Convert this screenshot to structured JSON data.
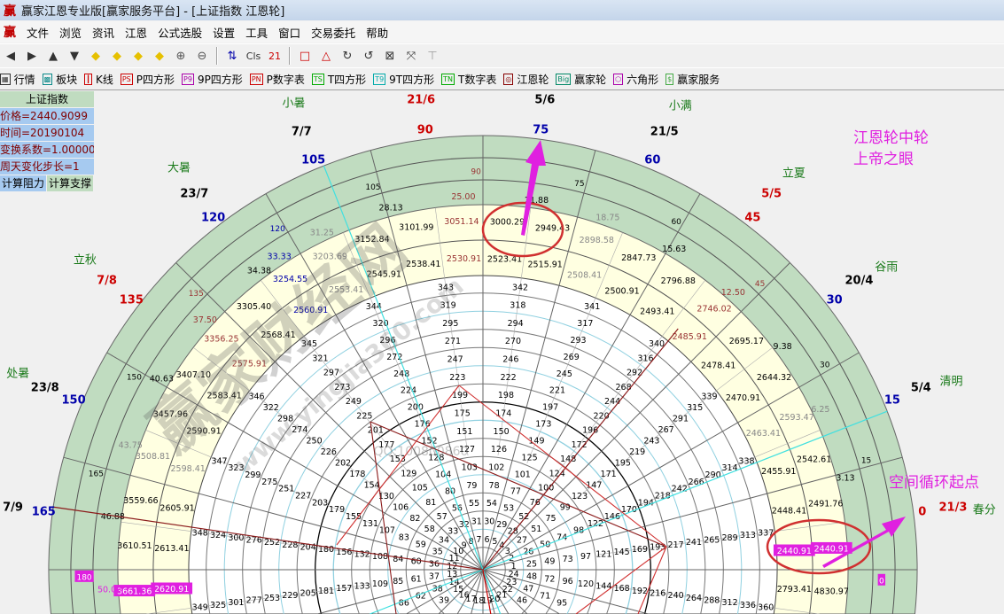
{
  "window": {
    "app_icon": "赢",
    "title": "赢家江恩专业版[赢家服务平台] - [上证指数 江恩轮]"
  },
  "menu": [
    "文件",
    "浏览",
    "资讯",
    "江恩",
    "公式选股",
    "设置",
    "工具",
    "窗口",
    "交易委托",
    "帮助"
  ],
  "toolbar1": [
    {
      "icon": "arrow-left-icon",
      "glyph": "◀"
    },
    {
      "icon": "arrow-right-icon",
      "glyph": "▶"
    },
    {
      "icon": "arrow-up-icon",
      "glyph": "▲"
    },
    {
      "icon": "arrow-down-icon",
      "glyph": "▼"
    },
    {
      "icon": "diamond-left-icon",
      "glyph": "◆"
    },
    {
      "icon": "diamond-right-icon",
      "glyph": "◆"
    },
    {
      "icon": "diamond-up-icon",
      "glyph": "◆"
    },
    {
      "icon": "diamond-down-icon",
      "glyph": "◆"
    },
    {
      "icon": "zoom-in-icon",
      "glyph": "⊕"
    },
    {
      "icon": "zoom-out-icon",
      "glyph": "⊖"
    },
    {
      "icon": "sort-icon",
      "glyph": "⇅"
    },
    {
      "icon": "cls-icon",
      "glyph": "Cls"
    },
    {
      "icon": "calendar-icon",
      "glyph": "21"
    },
    {
      "icon": "rectangle-icon",
      "glyph": "□"
    },
    {
      "icon": "triangle-icon",
      "glyph": "△"
    },
    {
      "icon": "rotate-cw-icon",
      "glyph": "↻"
    },
    {
      "icon": "rotate-ccw-icon",
      "glyph": "↺"
    },
    {
      "icon": "fit-icon",
      "glyph": "⊠"
    },
    {
      "icon": "shrink-icon",
      "glyph": "⤧"
    },
    {
      "icon": "pin-icon",
      "glyph": "⊤"
    }
  ],
  "toolbar2": [
    {
      "icon": "quotes-icon",
      "tag": "▦",
      "label": "行情",
      "color": "#333"
    },
    {
      "icon": "blocks-icon",
      "tag": "▩",
      "label": "板块",
      "color": "#0a8a8a"
    },
    {
      "icon": "kline-icon",
      "tag": "┃",
      "label": "K线",
      "color": "#c00"
    },
    {
      "icon": "ps-icon",
      "tag": "PS",
      "label": "P四方形",
      "color": "#c00"
    },
    {
      "icon": "p9-icon",
      "tag": "P9",
      "label": "9P四方形",
      "color": "#a0a"
    },
    {
      "icon": "pn-icon",
      "tag": "PN",
      "label": "P数字表",
      "color": "#c00"
    },
    {
      "icon": "ts-icon",
      "tag": "TS",
      "label": "T四方形",
      "color": "#0a0"
    },
    {
      "icon": "t9-icon",
      "tag": "T9",
      "label": "9T四方形",
      "color": "#0aa"
    },
    {
      "icon": "tn-icon",
      "tag": "TN",
      "label": "T数字表",
      "color": "#0a0"
    },
    {
      "icon": "gann-wheel-icon",
      "tag": "◎",
      "label": "江恩轮",
      "color": "#800"
    },
    {
      "icon": "big-wheel-icon",
      "tag": "Big",
      "label": "赢家轮",
      "color": "#086"
    },
    {
      "icon": "hexagon-icon",
      "tag": "⬡",
      "label": "六角形",
      "color": "#a0a"
    },
    {
      "icon": "dollar-icon",
      "tag": "$",
      "label": "赢家服务",
      "color": "#4a4"
    }
  ],
  "info_panel": {
    "header": "上证指数",
    "rows": [
      "价格=2440.9099",
      "时间=20190104",
      "变换系数=1.00000",
      "周天变化步长=1"
    ],
    "buttons": [
      "计算阻力",
      "计算支撑"
    ]
  },
  "wheel": {
    "colors": {
      "green": "#c0dcc0",
      "yellow": "#ffffe1",
      "red": "#cc0000",
      "blue": "#0000aa",
      "brown": "#993333",
      "magenta": "#e020e0",
      "cyan": "#40e0e0"
    },
    "degrees": [
      {
        "text": "0",
        "color": "#cc0000"
      },
      {
        "text": "15",
        "color": "#0000aa"
      },
      {
        "text": "30",
        "color": "#0000aa"
      },
      {
        "text": "45",
        "color": "#cc0000"
      },
      {
        "text": "60",
        "color": "#0000aa"
      },
      {
        "text": "75",
        "color": "#0000aa"
      },
      {
        "text": "90",
        "color": "#cc0000"
      },
      {
        "text": "105",
        "color": "#0000aa"
      },
      {
        "text": "120",
        "color": "#0000aa"
      },
      {
        "text": "135",
        "color": "#cc0000"
      },
      {
        "text": "150",
        "color": "#0000aa"
      },
      {
        "text": "165",
        "color": "#0000aa"
      }
    ],
    "dates": [
      {
        "text": "21/3",
        "color": "#cc0000"
      },
      {
        "text": "5/4",
        "color": "#000"
      },
      {
        "text": "20/4",
        "color": "#000"
      },
      {
        "text": "5/5",
        "color": "#cc0000"
      },
      {
        "text": "21/5",
        "color": "#000"
      },
      {
        "text": "5/6",
        "color": "#000"
      },
      {
        "text": "21/6",
        "color": "#cc0000"
      },
      {
        "text": "7/7",
        "color": "#000"
      },
      {
        "text": "23/7",
        "color": "#000"
      },
      {
        "text": "7/8",
        "color": "#cc0000"
      },
      {
        "text": "23/8",
        "color": "#000"
      },
      {
        "text": "7/9",
        "color": "#000"
      }
    ],
    "solar_terms": [
      {
        "deg": 0,
        "name": "春分"
      },
      {
        "deg": 15,
        "name": "清明"
      },
      {
        "deg": 30,
        "name": "谷雨"
      },
      {
        "deg": 45,
        "name": "立夏"
      },
      {
        "deg": 60,
        "name": "小满"
      },
      {
        "deg": 105,
        "name": "小暑"
      },
      {
        "deg": 120,
        "name": "大暑"
      },
      {
        "deg": 135,
        "name": "立秋"
      },
      {
        "deg": 150,
        "name": "处暑"
      }
    ],
    "green_percent": [
      {
        "deg": 11.25,
        "text": "3.13"
      },
      {
        "deg": 22.5,
        "text": "6.25"
      },
      {
        "deg": 33.75,
        "text": "9.38"
      },
      {
        "deg": 45,
        "text": "12.50"
      },
      {
        "deg": 56.25,
        "text": "15.63"
      },
      {
        "deg": 67.5,
        "text": "18.75"
      },
      {
        "deg": 78.75,
        "text": "21.88"
      },
      {
        "deg": 90,
        "text": "25.00"
      },
      {
        "deg": 101.25,
        "text": "28.13"
      },
      {
        "deg": 112.5,
        "text": "31.25"
      },
      {
        "deg": 120,
        "text": "33.33"
      },
      {
        "deg": 123.75,
        "text": "34.38"
      },
      {
        "deg": 135,
        "text": "37.50"
      },
      {
        "deg": 146.25,
        "text": "40.63"
      },
      {
        "deg": 157.5,
        "text": "43.75"
      },
      {
        "deg": 168.75,
        "text": "46.88"
      },
      {
        "deg": 180,
        "text": "50.00"
      }
    ],
    "green_degrees": [
      "0",
      "15",
      "30",
      "45",
      "60",
      "75",
      "90",
      "105",
      "120",
      "135",
      "150",
      "165",
      "180"
    ],
    "price_inner": [
      "2440.91",
      "2448.41",
      "2455.91",
      "2463.41",
      "2470.91",
      "2478.41",
      "2485.91",
      "2493.41",
      "2500.91",
      "2508.41",
      "2515.91",
      "2523.41",
      "2530.91",
      "2538.41",
      "2545.91",
      "2553.41",
      "2560.91",
      "2568.41",
      "2575.91",
      "2583.41",
      "2590.91",
      "2598.41",
      "2605.91",
      "2613.41",
      "2620.91"
    ],
    "price_inner_352_5": "2793.41",
    "price_outer": [
      "2440.91",
      "2491.76",
      "2542.61",
      "2593.47",
      "2644.32",
      "2695.17",
      "2746.02",
      "2796.88",
      "2847.73",
      "2898.58",
      "2949.43",
      "3000.29",
      "3051.14",
      "3101.99",
      "3152.84",
      "3203.69",
      "3254.55",
      "3305.40",
      "3356.25",
      "3407.10",
      "3457.96",
      "3508.81",
      "3559.66",
      "3610.51",
      "3661.36"
    ],
    "price_outer_352_5": "4830.97",
    "inner_numbers": {
      "first": 1,
      "last": 360,
      "per_ring": 24
    }
  },
  "annotations": {
    "eye_line1": "江恩轮中轮",
    "eye_line2": "上帝之眼",
    "cycle_start": "空间循环起点"
  },
  "watermark": {
    "brand": "赢家财经网",
    "url": "www.yingjia360.com",
    "qq": "QQ:100800860"
  }
}
